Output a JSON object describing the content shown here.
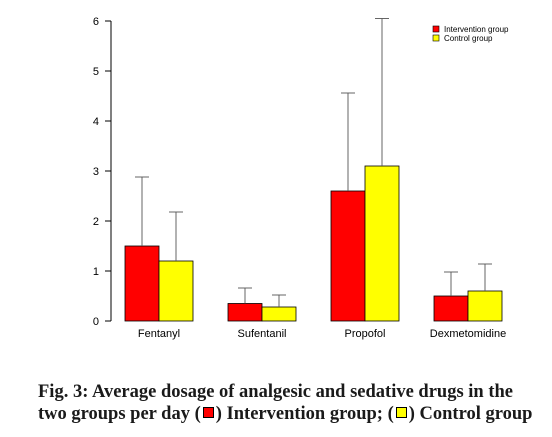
{
  "chart_data": {
    "type": "bar",
    "categories": [
      "Fentanyl",
      "Sufentanil",
      "Propofol",
      "Dexmetomidine"
    ],
    "series": [
      {
        "name": "Intervention group",
        "color": "#ff0000",
        "values": [
          1.5,
          0.35,
          2.6,
          0.5
        ],
        "error_upper": [
          2.88,
          0.66,
          4.56,
          0.98
        ]
      },
      {
        "name": "Control group",
        "color": "#ffff00",
        "values": [
          1.2,
          0.28,
          3.1,
          0.6
        ],
        "error_upper": [
          2.18,
          0.52,
          6.05,
          1.14
        ]
      }
    ],
    "y_ticks": [
      0,
      1,
      2,
      3,
      4,
      5,
      6
    ],
    "ylim": [
      0,
      6
    ],
    "grid": false,
    "legend_position": "top-right",
    "error_bars": "upper only (mean + SD)"
  },
  "caption": {
    "line1": "Fig. 3: Average dosage of analgesic and sedative drugs in the",
    "line2_prefix": "two groups per day (",
    "line2_middle": ") Intervention group; (",
    "line2_suffix": ") Control group"
  }
}
